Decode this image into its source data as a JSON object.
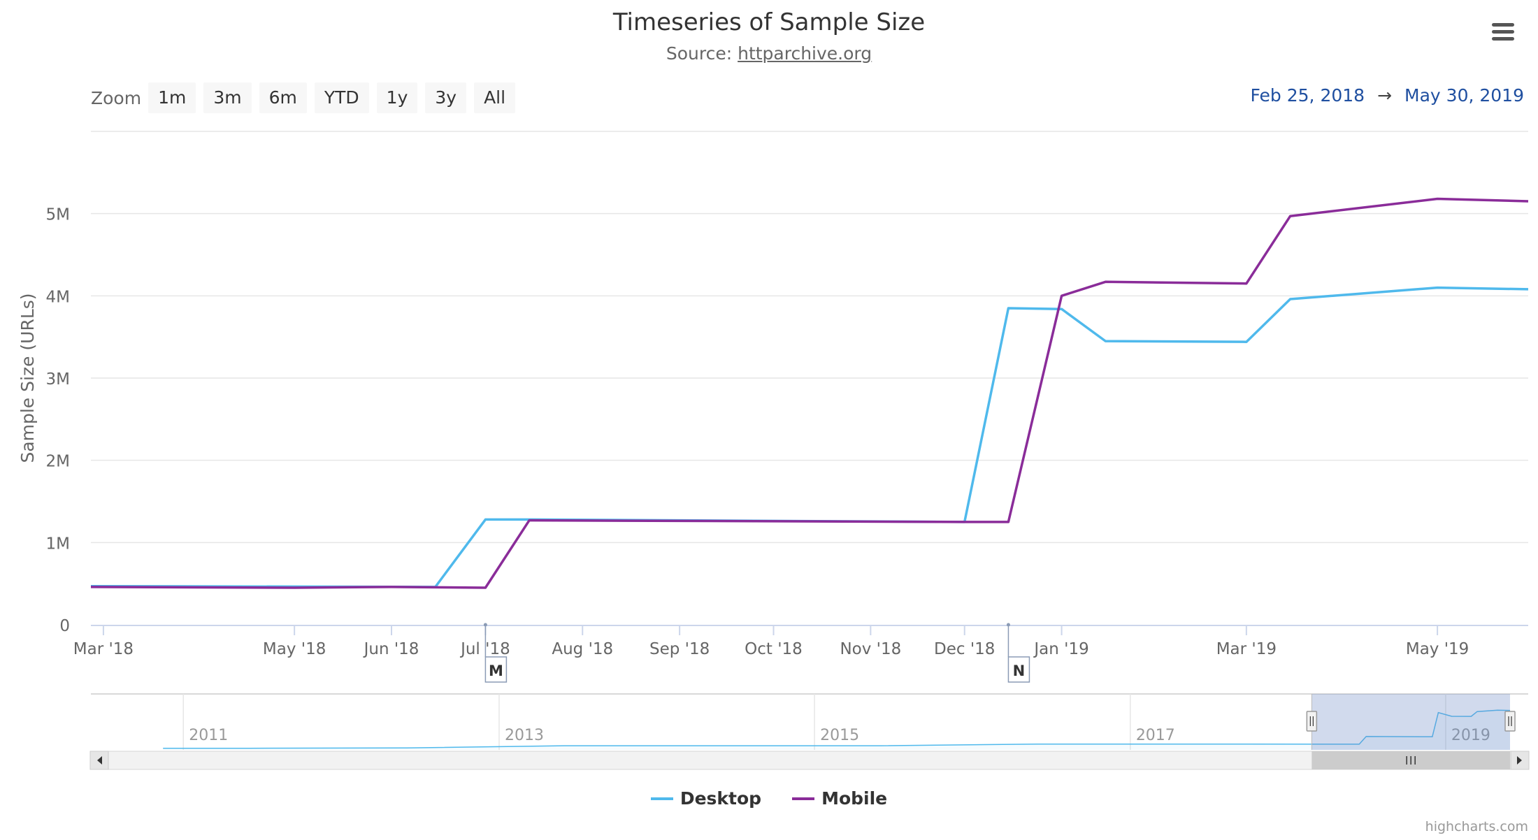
{
  "title": "Timeseries of Sample Size",
  "subtitle": {
    "prefix": "Source: ",
    "link_text": "httparchive.org"
  },
  "zoom": {
    "label": "Zoom",
    "buttons": [
      "1m",
      "3m",
      "6m",
      "YTD",
      "1y",
      "3y",
      "All"
    ]
  },
  "range": {
    "from": "Feb 25, 2018",
    "arrow": "→",
    "to": "May 30, 2019"
  },
  "credits": "highcharts.com",
  "colors": {
    "desktop": "#4fb9ec",
    "mobile": "#8a2c99",
    "navigator_mask": "#cfd5e8",
    "accent_text": "#1f4fa0"
  },
  "icons": {
    "menu": "hamburger-menu-icon"
  },
  "chart_data": {
    "type": "line",
    "ylabel": "Sample Size (URLs)",
    "ylim": [
      0,
      6000000
    ],
    "y_ticks": [
      {
        "value": 0,
        "label": "0"
      },
      {
        "value": 1000000,
        "label": "1M"
      },
      {
        "value": 2000000,
        "label": "2M"
      },
      {
        "value": 3000000,
        "label": "3M"
      },
      {
        "value": 4000000,
        "label": "4M"
      },
      {
        "value": 5000000,
        "label": "5M"
      }
    ],
    "xlim": [
      "2018-02-25",
      "2019-05-30"
    ],
    "x_ticks": [
      {
        "date": "2018-03-01",
        "label": "Mar '18"
      },
      {
        "date": "2018-05-01",
        "label": "May '18"
      },
      {
        "date": "2018-06-01",
        "label": "Jun '18"
      },
      {
        "date": "2018-07-01",
        "label": "Jul '18"
      },
      {
        "date": "2018-08-01",
        "label": "Aug '18"
      },
      {
        "date": "2018-09-01",
        "label": "Sep '18"
      },
      {
        "date": "2018-10-01",
        "label": "Oct '18"
      },
      {
        "date": "2018-11-01",
        "label": "Nov '18"
      },
      {
        "date": "2018-12-01",
        "label": "Dec '18"
      },
      {
        "date": "2019-01-01",
        "label": "Jan '19"
      },
      {
        "date": "2019-03-01",
        "label": "Mar '19"
      },
      {
        "date": "2019-05-01",
        "label": "May '19"
      }
    ],
    "grid": true,
    "legend_position": "bottom-center",
    "series": [
      {
        "name": "Desktop",
        "color": "#4fb9ec",
        "points": [
          [
            "2018-02-25",
            470000
          ],
          [
            "2018-06-15",
            460000
          ],
          [
            "2018-07-01",
            1280000
          ],
          [
            "2018-07-15",
            1280000
          ],
          [
            "2018-12-01",
            1250000
          ],
          [
            "2018-12-15",
            3850000
          ],
          [
            "2019-01-01",
            3840000
          ],
          [
            "2019-01-15",
            3450000
          ],
          [
            "2019-03-01",
            3440000
          ],
          [
            "2019-03-15",
            3960000
          ],
          [
            "2019-05-01",
            4100000
          ],
          [
            "2019-05-30",
            4080000
          ]
        ]
      },
      {
        "name": "Mobile",
        "color": "#8a2c99",
        "points": [
          [
            "2018-02-25",
            460000
          ],
          [
            "2018-05-01",
            450000
          ],
          [
            "2018-06-01",
            460000
          ],
          [
            "2018-07-01",
            450000
          ],
          [
            "2018-07-15",
            1270000
          ],
          [
            "2018-12-01",
            1250000
          ],
          [
            "2018-12-15",
            1250000
          ],
          [
            "2019-01-01",
            4000000
          ],
          [
            "2019-01-15",
            4170000
          ],
          [
            "2019-03-01",
            4150000
          ],
          [
            "2019-03-15",
            4970000
          ],
          [
            "2019-05-01",
            5180000
          ],
          [
            "2019-05-30",
            5150000
          ]
        ]
      }
    ],
    "flags": [
      {
        "date": "2018-07-01",
        "label": "M"
      },
      {
        "date": "2018-12-15",
        "label": "N"
      }
    ],
    "navigator": {
      "xlim": [
        "2010-06-01",
        "2019-05-30"
      ],
      "year_labels": [
        {
          "date": "2011-01-01",
          "label": "2011"
        },
        {
          "date": "2013-01-01",
          "label": "2013"
        },
        {
          "date": "2015-01-01",
          "label": "2015"
        },
        {
          "date": "2017-01-01",
          "label": "2017"
        },
        {
          "date": "2019-01-01",
          "label": "2019"
        }
      ],
      "selected": [
        "2018-02-25",
        "2019-05-30"
      ],
      "series_points": [
        [
          "2010-11-15",
          20000
        ],
        [
          "2011-06-01",
          25000
        ],
        [
          "2012-06-01",
          50000
        ],
        [
          "2013-06-01",
          290000
        ],
        [
          "2014-06-01",
          290000
        ],
        [
          "2015-06-01",
          290000
        ],
        [
          "2016-06-01",
          470000
        ],
        [
          "2017-06-01",
          470000
        ],
        [
          "2018-06-15",
          460000
        ],
        [
          "2018-07-01",
          1280000
        ],
        [
          "2018-12-01",
          1250000
        ],
        [
          "2018-12-15",
          3850000
        ],
        [
          "2019-01-15",
          3450000
        ],
        [
          "2019-03-01",
          3440000
        ],
        [
          "2019-03-15",
          3960000
        ],
        [
          "2019-05-01",
          4100000
        ],
        [
          "2019-05-30",
          4080000
        ]
      ]
    }
  }
}
